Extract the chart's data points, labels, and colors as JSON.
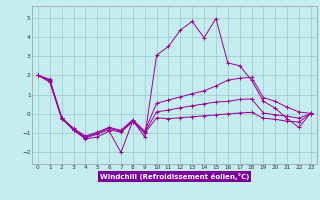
{
  "xlabel": "Windchill (Refroidissement éolien,°C)",
  "xlim": [
    -0.5,
    23.5
  ],
  "ylim": [
    -2.6,
    5.6
  ],
  "yticks": [
    -2,
    -1,
    0,
    1,
    2,
    3,
    4,
    5
  ],
  "xticks": [
    0,
    1,
    2,
    3,
    4,
    5,
    6,
    7,
    8,
    9,
    10,
    11,
    12,
    13,
    14,
    15,
    16,
    17,
    18,
    19,
    20,
    21,
    22,
    23
  ],
  "bg_color": "#c5edf0",
  "grid_color": "#9dc8d0",
  "line_color": "#990099",
  "xlabel_bg": "#7b0099",
  "line1_y": [
    2.0,
    1.8,
    -0.2,
    -0.85,
    -1.3,
    -1.2,
    -0.9,
    -2.0,
    -0.35,
    -1.2,
    3.05,
    3.5,
    4.35,
    4.8,
    3.95,
    4.95,
    2.65,
    2.5,
    1.75,
    0.65,
    0.3,
    -0.25,
    -0.7,
    0.05
  ],
  "line2_y": [
    2.0,
    1.75,
    -0.2,
    -0.75,
    -1.15,
    -0.95,
    -0.7,
    -0.85,
    -0.3,
    -0.9,
    0.55,
    0.72,
    0.88,
    1.05,
    1.2,
    1.45,
    1.75,
    1.85,
    1.9,
    0.85,
    0.65,
    0.35,
    0.1,
    0.03
  ],
  "line3_y": [
    2.0,
    1.7,
    -0.2,
    -0.78,
    -1.2,
    -1.0,
    -0.75,
    -0.9,
    -0.35,
    -0.95,
    0.1,
    0.2,
    0.32,
    0.42,
    0.52,
    0.62,
    0.65,
    0.75,
    0.78,
    0.05,
    -0.05,
    -0.12,
    -0.22,
    0.02
  ],
  "line4_y": [
    2.0,
    1.65,
    -0.25,
    -0.82,
    -1.25,
    -1.05,
    -0.82,
    -0.95,
    -0.4,
    -1.0,
    -0.2,
    -0.25,
    -0.2,
    -0.15,
    -0.1,
    -0.05,
    0.0,
    0.05,
    0.08,
    -0.22,
    -0.28,
    -0.38,
    -0.42,
    0.02
  ]
}
